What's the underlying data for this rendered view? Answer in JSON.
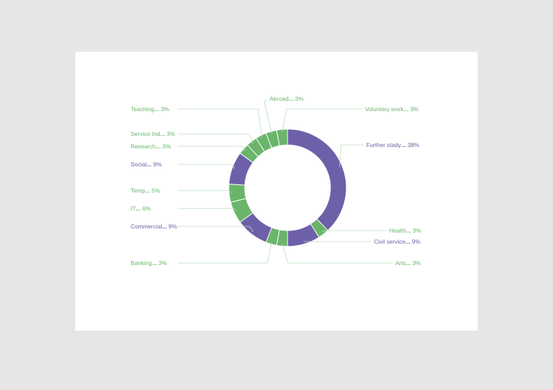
{
  "chart_data": {
    "type": "pie",
    "style": "donut",
    "colors": {
      "purple": "#6e60a8",
      "green": "#6ab56a",
      "leader": "#b8dbb8",
      "slice_border": "#ffffff"
    },
    "slices": [
      {
        "label": "Further stady",
        "value": 38,
        "pct": "38%",
        "color": "purple"
      },
      {
        "label": "Health",
        "value": 3,
        "pct": "3%",
        "color": "green"
      },
      {
        "label": "Civil service",
        "value": 9,
        "pct": "9%",
        "color": "purple"
      },
      {
        "label": "Arts",
        "value": 3,
        "pct": "3%",
        "color": "green"
      },
      {
        "label": "Banking",
        "value": 3,
        "pct": "3%",
        "color": "green"
      },
      {
        "label": "Commercial",
        "value": 9,
        "pct": "9%",
        "color": "purple"
      },
      {
        "label": "IT",
        "value": 6,
        "pct": "6%",
        "color": "green"
      },
      {
        "label": "Temp",
        "value": 5,
        "pct": "5%",
        "color": "green"
      },
      {
        "label": "Social",
        "value": 9,
        "pct": "9%",
        "color": "purple"
      },
      {
        "label": "Research",
        "value": 3,
        "pct": "3%",
        "color": "green"
      },
      {
        "label": "Service Ind",
        "value": 3,
        "pct": "3%",
        "color": "green"
      },
      {
        "label": "Teaching",
        "value": 3,
        "pct": "3%",
        "color": "green"
      },
      {
        "label": "Abroad",
        "value": 3,
        "pct": "3%",
        "color": "green"
      },
      {
        "label": "Voluntary work",
        "value": 3,
        "pct": "3%",
        "color": "green"
      }
    ]
  }
}
